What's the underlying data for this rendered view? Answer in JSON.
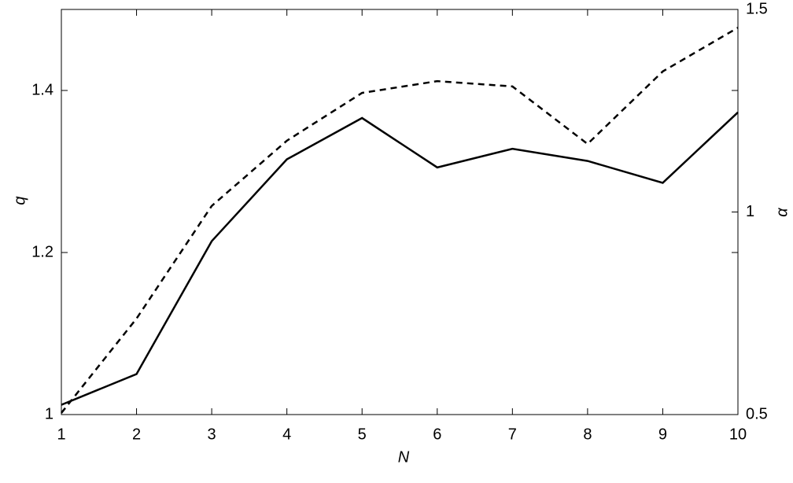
{
  "chart_data": {
    "type": "line",
    "x_label": "N",
    "y_label": "q",
    "y2_label": "α",
    "x": [
      1,
      2,
      3,
      4,
      5,
      6,
      7,
      8,
      9,
      10
    ],
    "xlim": [
      1,
      10
    ],
    "xticks": [
      1,
      2,
      3,
      4,
      5,
      6,
      7,
      8,
      9,
      10
    ],
    "ylim": [
      1,
      1.5
    ],
    "yticks": [
      1,
      1.2,
      1.4
    ],
    "y2lim": [
      0.5,
      1.5
    ],
    "y2ticks": [
      0.5,
      1,
      1.5
    ],
    "series": [
      {
        "color": "#000000",
        "dash": "solid",
        "values": [
          1.012,
          1.05,
          1.214,
          1.315,
          1.366,
          1.305,
          1.328,
          1.313,
          1.286,
          1.373
        ]
      },
      {
        "color": "#000000",
        "dash": "dashed",
        "axis": "y2",
        "values": [
          0.504,
          0.737,
          1.015,
          1.176,
          1.294,
          1.323,
          1.31,
          1.168,
          1.347,
          1.455
        ]
      }
    ]
  }
}
